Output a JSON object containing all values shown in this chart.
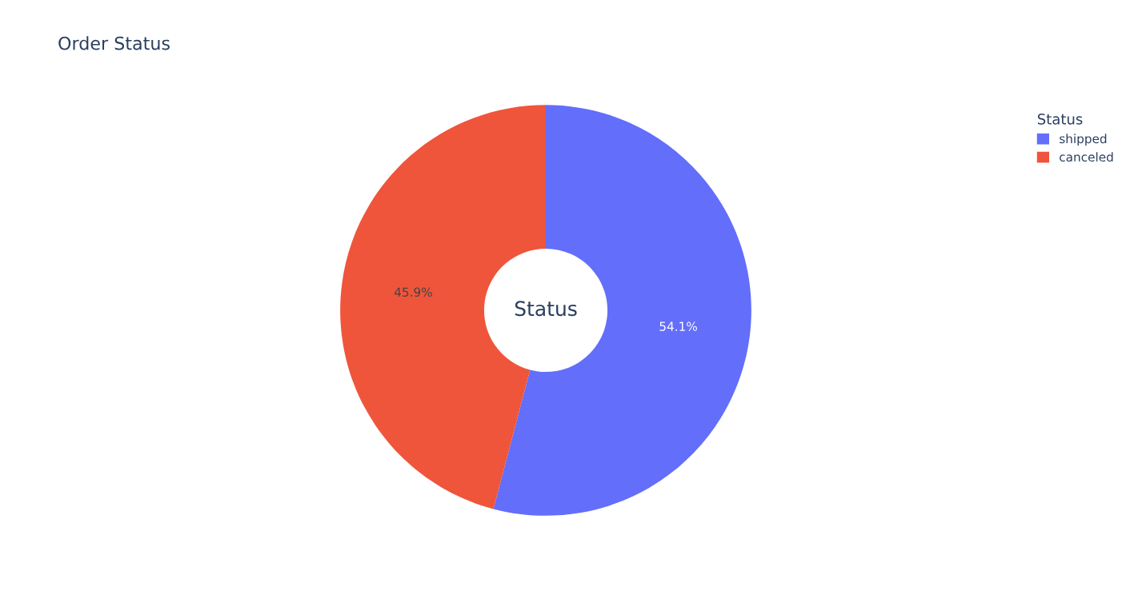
{
  "chart_data": {
    "type": "donut",
    "title": "Order Status",
    "legend_title": "Status",
    "legend": "top right",
    "categories": [
      "shipped",
      "canceled"
    ],
    "values": [
      54.1,
      45.9
    ],
    "colors": [
      "#636efa",
      "#ef553b"
    ],
    "value_labels": [
      "54.1%",
      "45.9%"
    ],
    "annotations": [
      "Status"
    ]
  }
}
